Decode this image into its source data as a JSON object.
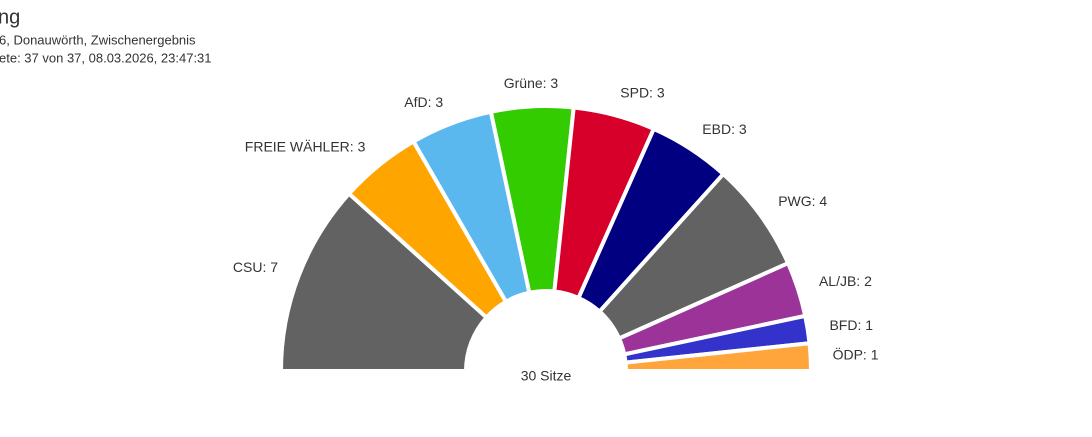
{
  "chart_data": {
    "type": "pie",
    "title": "ng",
    "subtitle": [
      "6, Donauwörth, Zwischenergebnis",
      "ete: 37 von 37, 08.03.2026, 23:47:31"
    ],
    "values": [
      7,
      3,
      3,
      3,
      3,
      3,
      4,
      2,
      1,
      1
    ],
    "value_labels": [
      "CSU: 7",
      "FREIE WÄHLER: 3",
      "AfD: 3",
      "Grüne: 3",
      "SPD: 3",
      "EBD: 3",
      "PWG: 4",
      "AL/JB: 2",
      "BFD: 1",
      "ÖDP: 1"
    ],
    "colors": [
      "#626262",
      "#ffa500",
      "#5bb8ee",
      "#33cc00",
      "#d6002a",
      "#000080",
      "#626262",
      "#9b3399",
      "#3333cc",
      "#ffa53b"
    ],
    "center_label": "30 Sitze"
  }
}
